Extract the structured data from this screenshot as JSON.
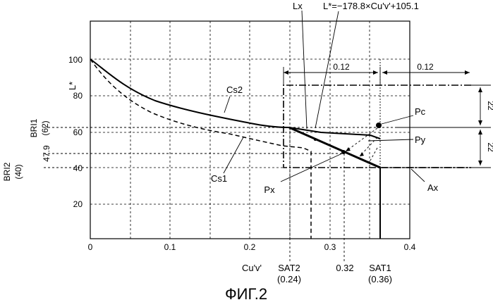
{
  "figure": {
    "caption": "ФИГ.2",
    "x_axis": {
      "label": "Cu'v'",
      "ticks": [
        "0",
        "0.1",
        "0.2",
        "0.3",
        "0.4"
      ]
    },
    "y_axis": {
      "label": "L*",
      "ticks": [
        "100",
        "80",
        "60",
        "40",
        "20"
      ]
    },
    "equation": "L*=−178.8×Cu'v'+105.1",
    "labels": {
      "lx": "Lx",
      "cs1": "Cs1",
      "cs2": "Cs2",
      "pc": "Pc",
      "py": "Py",
      "px": "Px",
      "ax": "Ax",
      "sat1": "SAT1",
      "sat1_val": "(0.36)",
      "sat2": "SAT2",
      "sat2_val": "(0.24)",
      "x_032": "0.32",
      "bri1": "BRI1",
      "bri1_val": "(62)",
      "bri2": "BRI2",
      "bri2_val": "(40)",
      "y_479": "47.9",
      "dim_012_left": "0.12",
      "dim_012_right": "0.12",
      "dim_22_top": "22",
      "dim_22_bottom": "22"
    }
  }
}
